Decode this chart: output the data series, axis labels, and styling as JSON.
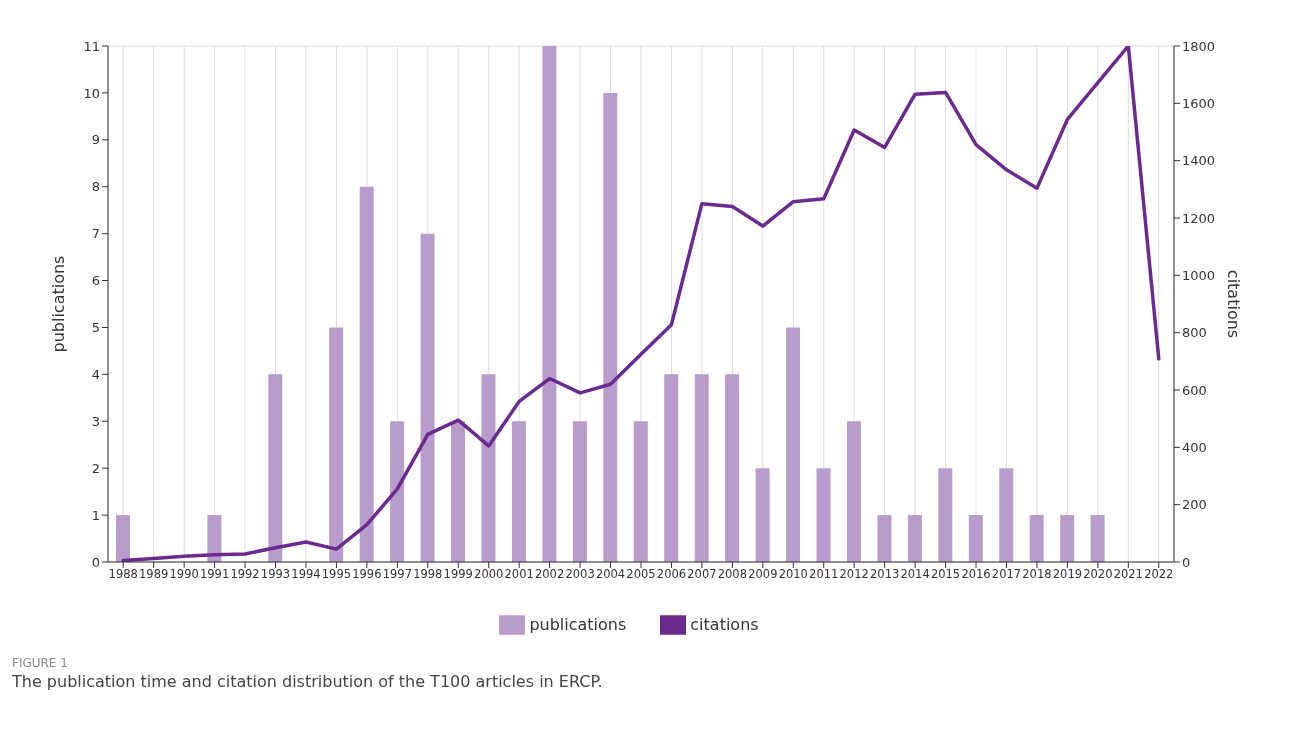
{
  "chart_data": {
    "type": "bar",
    "xlabel": null,
    "ylabel": "publications",
    "y2label": "citations",
    "categories": [
      "1988",
      "1989",
      "1990",
      "1991",
      "1992",
      "1993",
      "1994",
      "1995",
      "1996",
      "1997",
      "1998",
      "1999",
      "2000",
      "2001",
      "2002",
      "2003",
      "2004",
      "2005",
      "2006",
      "2007",
      "2008",
      "2009",
      "2010",
      "2011",
      "2012",
      "2013",
      "2014",
      "2015",
      "2016",
      "2017",
      "2018",
      "2019",
      "2020",
      "2021",
      "2022"
    ],
    "series": [
      {
        "name": "publications",
        "color": "#b89ccc",
        "values": [
          1,
          0,
          0,
          1,
          0,
          4,
          0,
          5,
          8,
          3,
          7,
          3,
          4,
          3,
          11,
          3,
          10,
          3,
          4,
          4,
          4,
          2,
          5,
          2,
          3,
          1,
          1,
          2,
          1,
          2,
          1,
          1,
          1,
          0,
          0
        ]
      },
      {
        "name": "citations",
        "type": "line",
        "axis": "y2",
        "color": "#6a2a8e",
        "values": [
          5,
          12,
          20,
          25,
          28,
          50,
          70,
          45,
          130,
          255,
          445,
          495,
          405,
          560,
          640,
          590,
          620,
          725,
          828,
          1250,
          1240,
          1172,
          1257,
          1267,
          1507,
          1446,
          1632,
          1638,
          1456,
          1368,
          1304,
          1544,
          1672,
          1800,
          709
        ]
      }
    ],
    "ylim": [
      0,
      11
    ],
    "yticks": [
      0,
      1,
      2,
      3,
      4,
      5,
      6,
      7,
      8,
      9,
      10,
      11
    ],
    "y2lim": [
      0,
      1800
    ],
    "y2ticks": [
      0,
      200,
      400,
      600,
      800,
      1000,
      1200,
      1400,
      1600,
      1800
    ],
    "grid": true,
    "legend": "bottom",
    "marker": "none",
    "line_style": "solid",
    "annotations": [
      "FIGURE 1",
      "The publication time and citation distribution of the T100 articles in ERCP."
    ]
  }
}
